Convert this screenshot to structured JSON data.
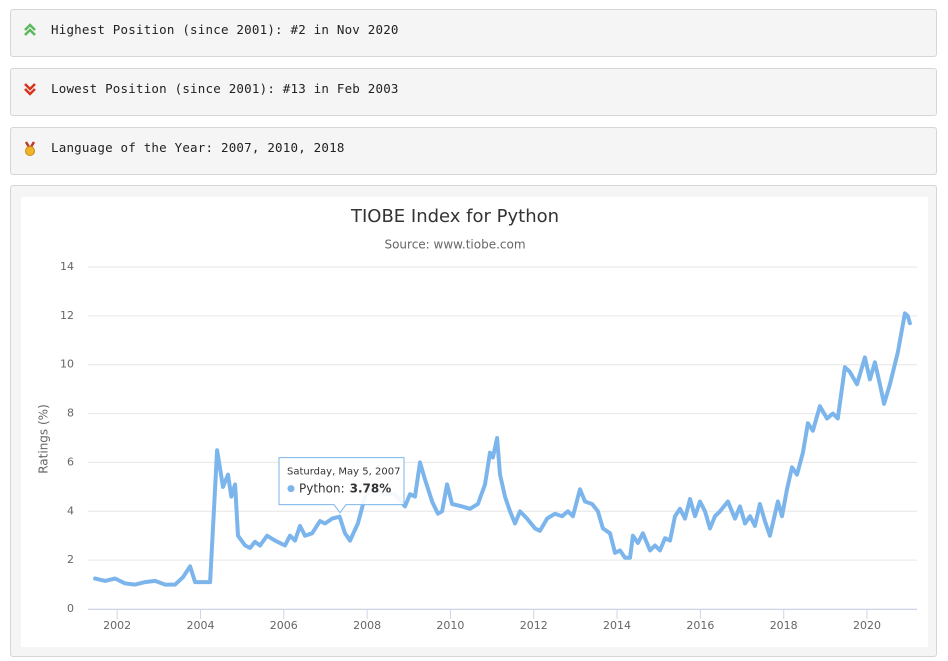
{
  "info_boxes": [
    "Highest Position (since 2001): #2 in Nov 2020",
    "Lowest Position (since 2001): #13 in Feb 2003",
    "Language of the Year: 2007, 2010, 2018"
  ],
  "chart_data": {
    "type": "line",
    "title": "TIOBE Index for Python",
    "subtitle": "Source: www.tiobe.com",
    "y_label": "Ratings (%)",
    "color": "#7cb5ec",
    "x": [
      2001.47,
      2001.71,
      2001.95,
      2002.19,
      2002.43,
      2002.67,
      2002.91,
      2003.15,
      2003.39,
      2003.58,
      2003.75,
      2003.87,
      2003.99,
      2004.23,
      2004.4,
      2004.54,
      2004.66,
      2004.74,
      2004.83,
      2004.9,
      2005.07,
      2005.19,
      2005.31,
      2005.43,
      2005.6,
      2005.79,
      2006.03,
      2006.15,
      2006.27,
      2006.39,
      2006.51,
      2006.68,
      2006.87,
      2006.99,
      2007.16,
      2007.34,
      2007.47,
      2007.59,
      2007.78,
      2007.95,
      2008.12,
      2008.43,
      2008.67,
      2008.91,
      2009.03,
      2009.15,
      2009.27,
      2009.39,
      2009.56,
      2009.7,
      2009.8,
      2009.92,
      2010.04,
      2010.28,
      2010.47,
      2010.66,
      2010.83,
      2010.95,
      2011.02,
      2011.12,
      2011.19,
      2011.31,
      2011.43,
      2011.55,
      2011.67,
      2011.84,
      2012.03,
      2012.15,
      2012.32,
      2012.51,
      2012.68,
      2012.82,
      2012.94,
      2013.11,
      2013.23,
      2013.4,
      2013.54,
      2013.66,
      2013.83,
      2013.95,
      2014.07,
      2014.19,
      2014.31,
      2014.38,
      2014.5,
      2014.62,
      2014.79,
      2014.91,
      2015.03,
      2015.15,
      2015.27,
      2015.39,
      2015.51,
      2015.63,
      2015.75,
      2015.87,
      2015.99,
      2016.11,
      2016.23,
      2016.35,
      2016.47,
      2016.66,
      2016.83,
      2016.95,
      2017.07,
      2017.19,
      2017.31,
      2017.43,
      2017.55,
      2017.67,
      2017.86,
      2017.96,
      2018.08,
      2018.2,
      2018.32,
      2018.46,
      2018.58,
      2018.7,
      2018.87,
      2019.04,
      2019.18,
      2019.3,
      2019.47,
      2019.59,
      2019.76,
      2019.95,
      2020.07,
      2020.19,
      2020.31,
      2020.41,
      2020.55,
      2020.74,
      2020.91,
      2020.98,
      2021.03
    ],
    "values": [
      1.25,
      1.15,
      1.25,
      1.05,
      1.0,
      1.1,
      1.15,
      1.0,
      1.0,
      1.3,
      1.75,
      1.1,
      1.1,
      1.1,
      6.5,
      5.0,
      5.5,
      4.6,
      5.1,
      3.0,
      2.6,
      2.5,
      2.75,
      2.6,
      3.0,
      2.8,
      2.6,
      3.0,
      2.8,
      3.4,
      3.0,
      3.1,
      3.6,
      3.5,
      3.7,
      3.78,
      3.1,
      2.8,
      3.5,
      4.6,
      5.0,
      4.7,
      4.7,
      4.2,
      4.7,
      4.6,
      6.0,
      5.3,
      4.4,
      3.9,
      4.0,
      5.1,
      4.3,
      4.2,
      4.1,
      4.3,
      5.1,
      6.4,
      6.2,
      7.0,
      5.5,
      4.6,
      4.0,
      3.5,
      4.0,
      3.7,
      3.3,
      3.2,
      3.7,
      3.9,
      3.8,
      4.0,
      3.8,
      4.9,
      4.4,
      4.3,
      4.0,
      3.3,
      3.1,
      2.3,
      2.4,
      2.1,
      2.1,
      3.0,
      2.7,
      3.1,
      2.4,
      2.6,
      2.4,
      2.9,
      2.8,
      3.8,
      4.1,
      3.7,
      4.5,
      3.8,
      4.4,
      4.0,
      3.3,
      3.8,
      4.0,
      4.4,
      3.7,
      4.2,
      3.5,
      3.8,
      3.4,
      4.3,
      3.6,
      3.0,
      4.4,
      3.8,
      4.9,
      5.8,
      5.5,
      6.4,
      7.6,
      7.3,
      8.3,
      7.8,
      8.0,
      7.8,
      9.9,
      9.7,
      9.2,
      10.3,
      9.4,
      10.1,
      9.2,
      8.4,
      9.2,
      10.5,
      12.1,
      12.0,
      11.7
    ],
    "xlim": [
      2001.3,
      2021.2
    ],
    "xticks": [
      2002,
      2004,
      2006,
      2008,
      2010,
      2012,
      2014,
      2016,
      2018,
      2020
    ],
    "ylim": [
      0,
      14
    ],
    "yticks": [
      0,
      2,
      4,
      6,
      8,
      10,
      12,
      14
    ],
    "grid": true,
    "tooltip": {
      "date": "Saturday, May 5, 2007",
      "label": "Python:",
      "value": 3.78,
      "value_label": "3.78%"
    }
  }
}
